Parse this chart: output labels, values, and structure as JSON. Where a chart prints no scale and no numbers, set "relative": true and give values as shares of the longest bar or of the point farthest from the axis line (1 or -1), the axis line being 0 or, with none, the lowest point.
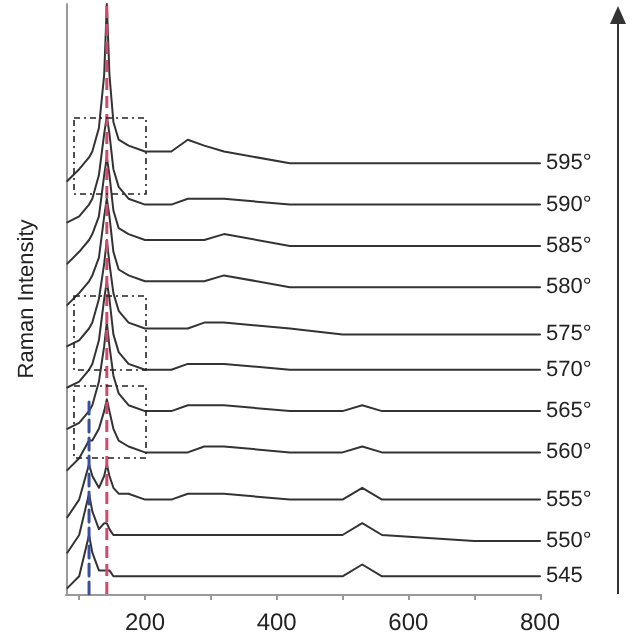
{
  "chart_data": {
    "type": "line",
    "relative": true,
    "ylabel": "Raman Intensity",
    "legend": false,
    "grid": false,
    "marker": "none",
    "line_style": "solid",
    "x": [
      82,
      100,
      115,
      120,
      130,
      138,
      142,
      146,
      152,
      160,
      175,
      200,
      240,
      265,
      290,
      320,
      420,
      500,
      530,
      560,
      700,
      800
    ],
    "xlim": [
      80,
      800
    ],
    "xticks": [
      {
        "value": 100,
        "label": null
      },
      200,
      {
        "value": 300,
        "label": null
      },
      400,
      {
        "value": 500,
        "label": null
      },
      600,
      {
        "value": 700,
        "label": null
      },
      800
    ],
    "ref_lines": [
      {
        "axis": "x",
        "value": 142,
        "color": "#d04a6a",
        "line_style": "dashed"
      }
    ],
    "series": [
      {
        "name": "595°",
        "color": "#333333",
        "values": [
          0.7,
          0.72,
          0.74,
          0.75,
          0.79,
          0.88,
          1.0,
          0.88,
          0.8,
          0.77,
          0.76,
          0.75,
          0.75,
          0.77,
          0.76,
          0.75,
          0.73,
          0.73,
          0.73,
          0.73,
          0.73,
          0.73
        ]
      },
      {
        "name": "590°",
        "color": "#333333",
        "values": [
          0.63,
          0.64,
          0.66,
          0.67,
          0.71,
          0.78,
          0.81,
          0.78,
          0.72,
          0.69,
          0.67,
          0.66,
          0.66,
          0.67,
          0.67,
          0.67,
          0.66,
          0.66,
          0.66,
          0.66,
          0.66,
          0.66
        ]
      },
      {
        "name": "585°",
        "color": "#333333",
        "values": [
          0.56,
          0.58,
          0.6,
          0.61,
          0.64,
          0.71,
          0.74,
          0.71,
          0.65,
          0.62,
          0.61,
          0.6,
          0.6,
          0.6,
          0.6,
          0.61,
          0.59,
          0.59,
          0.59,
          0.59,
          0.59,
          0.59
        ]
      },
      {
        "name": "580°",
        "color": "#333333",
        "values": [
          0.49,
          0.51,
          0.53,
          0.54,
          0.57,
          0.64,
          0.67,
          0.64,
          0.58,
          0.55,
          0.54,
          0.53,
          0.53,
          0.53,
          0.53,
          0.54,
          0.52,
          0.52,
          0.52,
          0.52,
          0.52,
          0.52
        ]
      },
      {
        "name": "575°",
        "color": "#333333",
        "values": [
          0.42,
          0.43,
          0.45,
          0.46,
          0.5,
          0.56,
          0.6,
          0.56,
          0.51,
          0.48,
          0.46,
          0.45,
          0.45,
          0.45,
          0.46,
          0.46,
          0.45,
          0.44,
          0.44,
          0.44,
          0.44,
          0.44
        ]
      },
      {
        "name": "570°",
        "color": "#333333",
        "values": [
          0.35,
          0.36,
          0.38,
          0.39,
          0.43,
          0.5,
          0.53,
          0.5,
          0.44,
          0.41,
          0.39,
          0.38,
          0.38,
          0.39,
          0.39,
          0.39,
          0.38,
          0.38,
          0.38,
          0.38,
          0.38,
          0.38
        ]
      },
      {
        "name": "565°",
        "color": "#333333",
        "values": [
          0.28,
          0.29,
          0.31,
          0.32,
          0.36,
          0.42,
          0.46,
          0.42,
          0.37,
          0.34,
          0.32,
          0.31,
          0.31,
          0.32,
          0.32,
          0.32,
          0.31,
          0.31,
          0.32,
          0.31,
          0.31,
          0.31
        ]
      },
      {
        "name": "560°",
        "color": "#333333",
        "values": [
          0.21,
          0.23,
          0.26,
          0.26,
          0.28,
          0.31,
          0.33,
          0.31,
          0.28,
          0.26,
          0.25,
          0.24,
          0.24,
          0.24,
          0.25,
          0.25,
          0.24,
          0.24,
          0.25,
          0.24,
          0.24,
          0.24
        ]
      },
      {
        "name": "555°",
        "color": "#333333",
        "values": [
          0.13,
          0.16,
          0.22,
          0.2,
          0.18,
          0.2,
          0.22,
          0.2,
          0.18,
          0.17,
          0.17,
          0.16,
          0.16,
          0.17,
          0.17,
          0.17,
          0.16,
          0.16,
          0.18,
          0.16,
          0.16,
          0.16
        ]
      },
      {
        "name": "550°",
        "color": "#333333",
        "values": [
          0.07,
          0.1,
          0.17,
          0.14,
          0.11,
          0.12,
          0.12,
          0.11,
          0.1,
          0.1,
          0.1,
          0.1,
          0.1,
          0.1,
          0.1,
          0.1,
          0.1,
          0.1,
          0.12,
          0.1,
          0.09,
          0.09
        ]
      },
      {
        "name": "545",
        "color": "#333333",
        "values": [
          0.01,
          0.03,
          0.1,
          0.07,
          0.04,
          0.04,
          0.04,
          0.04,
          0.03,
          0.03,
          0.03,
          0.03,
          0.03,
          0.03,
          0.03,
          0.03,
          0.03,
          0.03,
          0.05,
          0.03,
          0.03,
          0.03
        ]
      },
      {
        "color": "#3a4fa0",
        "line_style": "dashed",
        "x": [
          115,
          115
        ],
        "values": [
          0,
          0.33
        ]
      }
    ]
  }
}
